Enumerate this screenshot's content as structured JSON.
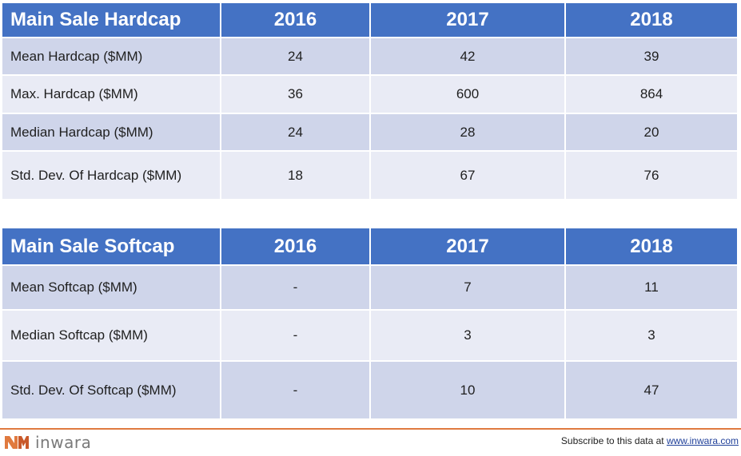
{
  "hardcap_table": {
    "header": [
      "Main Sale Hardcap",
      "2016",
      "2017",
      "2018"
    ],
    "rows": [
      [
        "Mean Hardcap ($MM)",
        "24",
        "42",
        "39"
      ],
      [
        "Max. Hardcap ($MM)",
        "36",
        "600",
        "864"
      ],
      [
        "Median Hardcap ($MM)",
        "24",
        "28",
        "20"
      ],
      [
        "Std. Dev. Of Hardcap ($MM)",
        "18",
        "67",
        "76"
      ]
    ]
  },
  "softcap_table": {
    "header": [
      "Main Sale Softcap",
      "2016",
      "2017",
      "2018"
    ],
    "rows": [
      [
        "Mean Softcap ($MM)",
        "-",
        "7",
        "11"
      ],
      [
        "Median Softcap ($MM)",
        "-",
        "3",
        "3"
      ],
      [
        "Std. Dev. Of Softcap ($MM)",
        "-",
        "10",
        "47"
      ]
    ]
  },
  "footer": {
    "logo_text": "inwara",
    "subscribe_text": "Subscribe to this data at ",
    "subscribe_link": "www.inwara.com"
  },
  "colors": {
    "header_bg": "#4472c4",
    "row_odd": "#cfd5ea",
    "row_even": "#e9ebf5",
    "accent": "#e07a3f"
  }
}
